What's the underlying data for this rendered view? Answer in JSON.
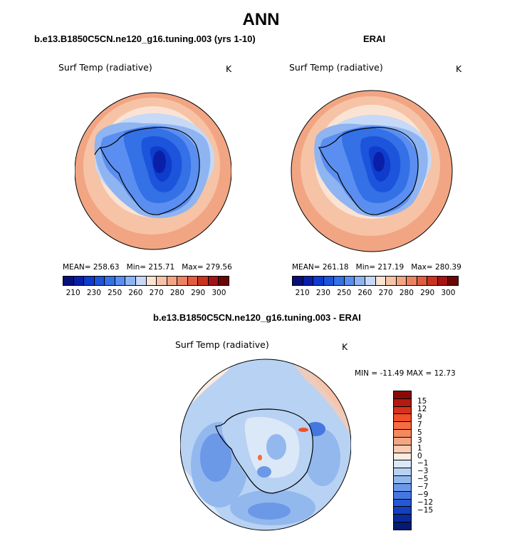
{
  "title": "ANN",
  "panels": [
    {
      "title": "b.e13.B1850C5CN.ne120_g16.tuning.003 (yrs 1-10)",
      "variable": "Surf Temp (radiative)",
      "units": "K",
      "mean_label": "MEAN=",
      "mean": "258.63",
      "min_label": "Min=",
      "min": "215.71",
      "max_label": "Max=",
      "max": "279.56"
    },
    {
      "title": "ERAI",
      "variable": "Surf Temp (radiative)",
      "units": "K",
      "mean_label": "MEAN=",
      "mean": "261.18",
      "min_label": "Min=",
      "min": "217.19",
      "max_label": "Max=",
      "max": "280.39"
    }
  ],
  "abs_colorbar": {
    "ticks": [
      "210",
      "230",
      "250",
      "260",
      "270",
      "280",
      "290",
      "300"
    ],
    "colors": [
      "#08107a",
      "#0a1fa8",
      "#0f3ccc",
      "#1c54dc",
      "#3470e6",
      "#5a8ef0",
      "#8eb4f2",
      "#c6d9f6",
      "#fbe3d4",
      "#f6c3a6",
      "#f3a582",
      "#ec8262",
      "#e05d40",
      "#c8351f",
      "#a31412",
      "#6b0705"
    ]
  },
  "difference": {
    "title": "b.e13.B1850C5CN.ne120_g16.tuning.003 - ERAI",
    "variable": "Surf Temp (radiative)",
    "units": "K",
    "min_label": "MIN =",
    "min": "-11.49",
    "max_label": "MAX =",
    "max": "12.73",
    "colorbar_ticks": [
      "15",
      "12",
      "9",
      "7",
      "5",
      "3",
      "1",
      "0",
      "−1",
      "−3",
      "−5",
      "−7",
      "−9",
      "−12",
      "−15"
    ],
    "colorbar_colors": [
      "#8b0a05",
      "#b31b10",
      "#d8321c",
      "#f0502a",
      "#f56d40",
      "#f4895e",
      "#f4a683",
      "#f9cbb2",
      "#fdebdf",
      "#dbe8f8",
      "#b8d2f3",
      "#93b8ee",
      "#6c98e8",
      "#4577e0",
      "#2558d6",
      "#1440bf",
      "#0b2b9a",
      "#061a72"
    ]
  }
}
